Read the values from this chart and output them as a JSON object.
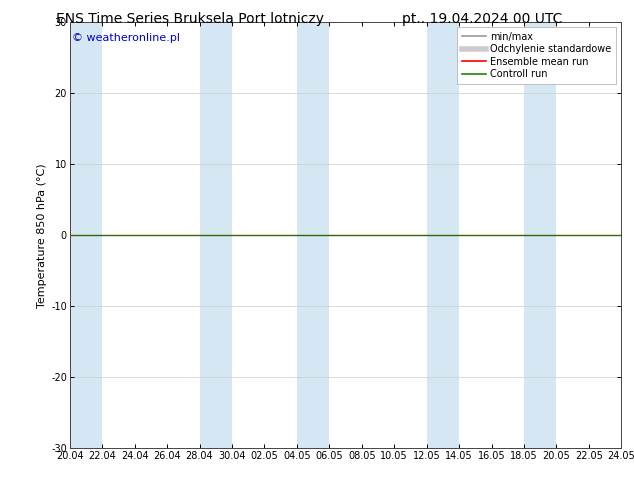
{
  "title_left": "ENS Time Series Bruksela Port lotniczy",
  "title_right": "pt.. 19.04.2024 00 UTC",
  "ylabel": "Temperature 850 hPa (°C)",
  "ylim": [
    -30,
    30
  ],
  "yticks": [
    -30,
    -20,
    -10,
    0,
    10,
    20,
    30
  ],
  "xtick_labels": [
    "20.04",
    "22.04",
    "24.04",
    "26.04",
    "28.04",
    "30.04",
    "02.05",
    "04.05",
    "06.05",
    "08.05",
    "10.05",
    "12.05",
    "14.05",
    "16.05",
    "18.05",
    "20.05",
    "22.05",
    "24.05"
  ],
  "xtick_positions": [
    0,
    2,
    4,
    6,
    8,
    10,
    12,
    14,
    16,
    18,
    20,
    22,
    24,
    26,
    28,
    30,
    32,
    34
  ],
  "x_total": 34,
  "shaded_bands": [
    [
      0,
      2
    ],
    [
      8,
      10
    ],
    [
      14,
      16
    ],
    [
      22,
      24
    ],
    [
      28,
      30
    ]
  ],
  "zero_line_y": 0,
  "zero_line_color": "#336600",
  "band_color": "#c8dff0",
  "band_alpha": 0.75,
  "watermark": "© weatheronline.pl",
  "watermark_color": "#0000cc",
  "legend_entries": [
    {
      "label": "min/max",
      "color": "#999999",
      "lw": 1.2,
      "style": "solid"
    },
    {
      "label": "Odchylenie standardowe",
      "color": "#cccccc",
      "lw": 4,
      "style": "solid"
    },
    {
      "label": "Ensemble mean run",
      "color": "#ff0000",
      "lw": 1.2,
      "style": "solid"
    },
    {
      "label": "Controll run",
      "color": "#228800",
      "lw": 1.2,
      "style": "solid"
    }
  ],
  "bg_color": "#ffffff",
  "spine_color": "#444444",
  "title_fontsize": 10,
  "tick_fontsize": 7,
  "ylabel_fontsize": 8,
  "watermark_fontsize": 8,
  "legend_fontsize": 7
}
